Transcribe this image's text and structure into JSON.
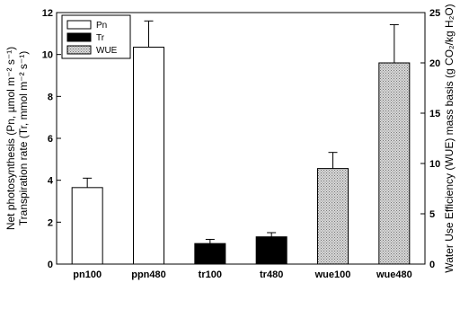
{
  "chart_data": {
    "type": "bar",
    "categories": [
      "pn100",
      "ppn480",
      "tr100",
      "tr480",
      "wue100",
      "wue480"
    ],
    "series": [
      {
        "name": "Pn",
        "axis": "left",
        "color": "#ffffff",
        "fill_pattern": "none",
        "values": [
          3.65,
          10.35,
          null,
          null,
          null,
          null
        ],
        "errors": [
          0.45,
          1.25,
          null,
          null,
          null,
          null
        ]
      },
      {
        "name": "Tr",
        "axis": "left",
        "color": "#000000",
        "fill_pattern": "none",
        "values": [
          null,
          null,
          0.98,
          1.3,
          null,
          null
        ],
        "errors": [
          null,
          null,
          0.2,
          0.2,
          null,
          null
        ]
      },
      {
        "name": "WUE",
        "axis": "right",
        "color": "#c8c8c8",
        "fill_pattern": "dotted",
        "values": [
          null,
          null,
          null,
          null,
          9.5,
          20.0
        ],
        "errors": [
          null,
          null,
          null,
          null,
          1.6,
          3.8
        ]
      }
    ],
    "ylabel": [
      "Net photosynthesis (Pn, µmol m⁻² s⁻¹)",
      "Transpiration rate (Tr, mmol m⁻² s⁻¹)"
    ],
    "ylabel_right": "Water Use Efficiency (WUE) mass basis (g CO₂/kg H₂O)",
    "ylim": [
      0,
      12
    ],
    "ylim_right": [
      0,
      25
    ],
    "yticks": [
      "0",
      "2",
      "4",
      "6",
      "8",
      "10",
      "12"
    ],
    "yticks_right": [
      "0",
      "5",
      "10",
      "15",
      "20",
      "25"
    ],
    "grid": false,
    "legend_position": "top-left"
  }
}
